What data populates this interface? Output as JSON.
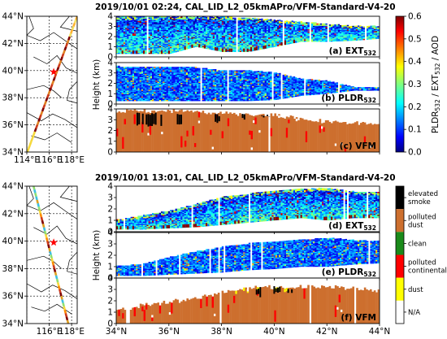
{
  "figure": {
    "title_top": "2019/10/01 02:24, CAL_LID_L2_05kmAPro/VFM-Standard-V4-20",
    "title_bottom": "2019/10/01 13:01, CAL_LID_L2_05kmAPro/VFM-Standard-V4-20",
    "height_label": "Height (km)",
    "colorbar_label": "PLDR532 / EXT532 / AOD",
    "colors": {
      "smoke": "#000000",
      "polluted_dust": "#cd6f2e",
      "clean": "#1a8a1a",
      "polluted_continental": "#ff0000",
      "dust": "#ffff00",
      "na": "#ffffff",
      "track_start": "#f5d83a",
      "star": "#ff0000"
    }
  },
  "chart_data": [
    {
      "type": "map",
      "name": "map-top",
      "xlim": [
        114,
        118.5
      ],
      "ylim": [
        34,
        44
      ],
      "xticks": [
        "114°E",
        "116°E",
        "118°E"
      ],
      "yticks": [
        "34°N",
        "36°N",
        "38°N",
        "40°N",
        "42°N",
        "44°N"
      ],
      "track": [
        [
          114.05,
          34.0
        ],
        [
          118.5,
          44.0
        ]
      ],
      "star": [
        116.4,
        39.9
      ]
    },
    {
      "type": "map",
      "name": "map-bottom",
      "xlim": [
        114,
        118.5
      ],
      "ylim": [
        34,
        44
      ],
      "xticks": [
        "116°E",
        "118°E"
      ],
      "yticks": [
        "34°N",
        "36°N",
        "38°N",
        "40°N",
        "42°N",
        "44°N"
      ],
      "track": [
        [
          114.6,
          44.0
        ],
        [
          117.7,
          34.0
        ]
      ],
      "star": [
        116.4,
        39.9
      ]
    },
    {
      "type": "heatmap",
      "name": "ext-top",
      "label": "(a) EXT",
      "label_sub": "532",
      "xlim": [
        34,
        44
      ],
      "ylim": [
        0,
        4
      ],
      "yticks": [
        "0",
        "1",
        "2",
        "3",
        "4"
      ],
      "profile": [
        [
          34,
          0.3,
          3.9
        ],
        [
          36,
          0.3,
          3.9
        ],
        [
          37,
          1.0,
          3.9
        ],
        [
          38,
          0.5,
          3.9
        ],
        [
          39,
          0.5,
          3.8
        ],
        [
          40,
          1.0,
          3.6
        ],
        [
          41,
          1.5,
          3.4
        ],
        [
          42,
          1.5,
          3.2
        ],
        [
          43,
          1.6,
          3.0
        ],
        [
          44,
          1.8,
          3.0
        ]
      ]
    },
    {
      "type": "heatmap",
      "name": "pldr-top",
      "label": "(b) PLDR",
      "label_sub": "532",
      "xlim": [
        34,
        44
      ],
      "ylim": [
        0,
        4
      ],
      "yticks": [
        "0",
        "1",
        "2",
        "3",
        "4"
      ],
      "profile": [
        [
          34,
          0.3,
          3.6
        ],
        [
          36,
          0.3,
          3.5
        ],
        [
          37,
          0.3,
          3.5
        ],
        [
          38,
          0.3,
          3.2
        ],
        [
          39,
          0.3,
          3.2
        ],
        [
          40,
          0.4,
          3.0
        ],
        [
          41,
          0.8,
          2.4
        ],
        [
          42,
          1.0,
          2.2
        ],
        [
          43,
          1.3,
          1.6
        ],
        [
          44,
          1.3,
          1.6
        ]
      ]
    },
    {
      "type": "heatmap",
      "name": "vfm-top",
      "label": "(c) VFM",
      "xlim": [
        34,
        44
      ],
      "ylim": [
        0,
        4
      ],
      "yticks": [
        "0",
        "1",
        "2",
        "3",
        "4"
      ],
      "top": [
        [
          34,
          3.8
        ],
        [
          36,
          3.8
        ],
        [
          38,
          3.6
        ],
        [
          40,
          3.4
        ],
        [
          41,
          3.1
        ],
        [
          42,
          2.8
        ],
        [
          43,
          2.7
        ],
        [
          44,
          2.5
        ]
      ],
      "black_regions": [
        [
          34.7,
          35.8,
          2.3,
          3.7
        ],
        [
          36.3,
          36.6,
          2.5,
          3.6
        ],
        [
          37.6,
          37.9,
          2.6,
          3.6
        ],
        [
          38.7,
          39.0,
          3.0,
          3.6
        ],
        [
          39.5,
          39.8,
          3.1,
          3.5
        ]
      ]
    },
    {
      "type": "heatmap",
      "name": "ext-bottom",
      "label": "(d) EXT",
      "label_sub": "532",
      "xlim": [
        34,
        44
      ],
      "ylim": [
        0,
        4
      ],
      "yticks": [
        "0",
        "1",
        "2",
        "3",
        "4"
      ],
      "profile": [
        [
          34,
          0.2,
          1.0
        ],
        [
          35,
          0.2,
          1.4
        ],
        [
          36,
          0.3,
          1.8
        ],
        [
          37,
          0.4,
          2.4
        ],
        [
          38,
          0.6,
          3.0
        ],
        [
          39,
          0.8,
          3.3
        ],
        [
          40,
          1.0,
          3.6
        ],
        [
          41,
          1.2,
          3.7
        ],
        [
          42,
          1.0,
          3.8
        ],
        [
          43,
          1.2,
          3.5
        ],
        [
          44,
          1.2,
          3.4
        ]
      ]
    },
    {
      "type": "heatmap",
      "name": "pldr-bottom",
      "label": "(e) PLDR",
      "label_sub": "532",
      "xlim": [
        34,
        44
      ],
      "ylim": [
        0,
        4
      ],
      "yticks": [
        "0",
        "1",
        "2",
        "3",
        "4"
      ],
      "profile": [
        [
          34,
          0.2,
          1.0
        ],
        [
          35,
          0.2,
          1.2
        ],
        [
          36,
          0.3,
          1.8
        ],
        [
          37,
          0.4,
          2.3
        ],
        [
          38,
          0.5,
          2.7
        ],
        [
          39,
          0.7,
          3.0
        ],
        [
          40,
          0.8,
          3.2
        ],
        [
          41,
          1.0,
          3.3
        ],
        [
          42,
          1.0,
          3.5
        ],
        [
          43,
          1.2,
          3.3
        ],
        [
          44,
          1.3,
          3.2
        ]
      ]
    },
    {
      "type": "heatmap",
      "name": "vfm-bottom",
      "label": "(f) VFM",
      "xlim": [
        34,
        44
      ],
      "ylim": [
        0,
        4
      ],
      "yticks": [
        "0",
        "1",
        "2",
        "3",
        "4"
      ],
      "xticks": [
        "34°N",
        "36°N",
        "38°N",
        "40°N",
        "42°N",
        "44°N"
      ],
      "top": [
        [
          34,
          1.2
        ],
        [
          35,
          1.6
        ],
        [
          36,
          1.9
        ],
        [
          37,
          2.2
        ],
        [
          38,
          2.7
        ],
        [
          39,
          3.1
        ],
        [
          40,
          3.2
        ],
        [
          41,
          3.3
        ],
        [
          42,
          3.2
        ],
        [
          43,
          3.1
        ],
        [
          44,
          2.8
        ]
      ],
      "black_regions": [
        [
          39.3,
          39.5,
          2.3,
          3.3
        ],
        [
          39.9,
          40.2,
          2.5,
          3.3
        ],
        [
          40.5,
          40.7,
          2.6,
          3.2
        ]
      ]
    },
    {
      "type": "colorbar",
      "name": "continuous-colorbar",
      "range": [
        0.0,
        0.6
      ],
      "ticks": [
        "0.0",
        "0.1",
        "0.2",
        "0.3",
        "0.4",
        "0.5",
        "0.6"
      ],
      "tick_values": [
        0.0,
        0.1,
        0.2,
        0.3,
        0.4,
        0.5,
        0.6
      ],
      "colormap": "jet"
    },
    {
      "type": "legend",
      "name": "vfm-legend",
      "categories": [
        {
          "label": [
            "elevated",
            "smoke"
          ],
          "color": "#000000"
        },
        {
          "label": [
            "polluted",
            "dust"
          ],
          "color": "#cd6f2e"
        },
        {
          "label": [
            "clean"
          ],
          "color": "#1a8a1a"
        },
        {
          "label": [
            "polluted",
            "continental"
          ],
          "color": "#ff0000"
        },
        {
          "label": [
            "dust"
          ],
          "color": "#ffff00"
        },
        {
          "label": [
            "N/A"
          ],
          "color": "#ffffff"
        }
      ]
    }
  ]
}
